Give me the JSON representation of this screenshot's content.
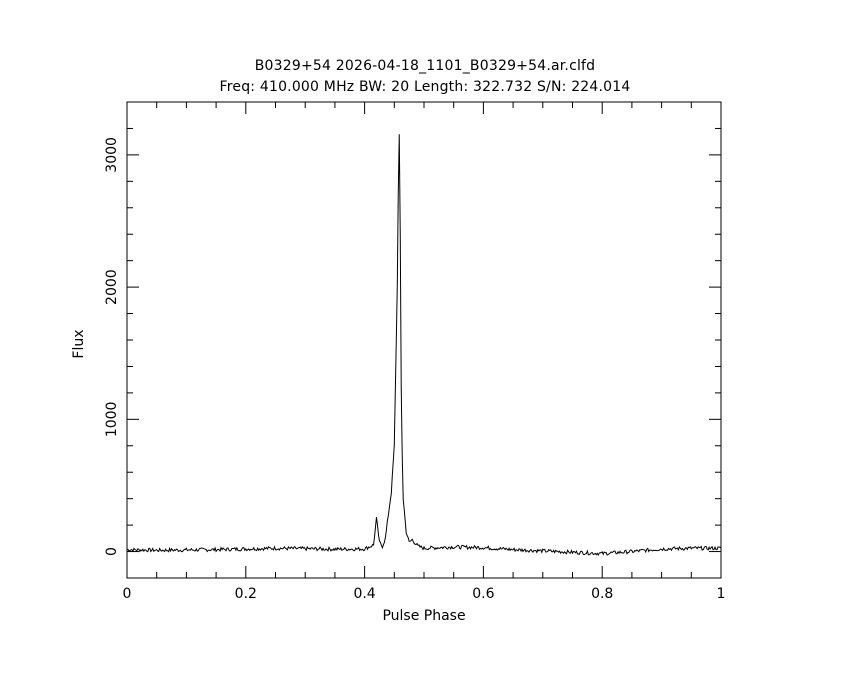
{
  "chart_data": {
    "type": "line",
    "title": "B0329+54 2026-04-18_1101_B0329+54.ar.clfd",
    "subtitle": "Freq: 410.000 MHz BW: 20 Length: 322.732 S/N: 224.014",
    "xlabel": "Pulse Phase",
    "ylabel": "Flux",
    "xlim": [
      0,
      1
    ],
    "ylim": [
      -200,
      3400
    ],
    "xticks": [
      0,
      0.2,
      0.4,
      0.6,
      0.8,
      1
    ],
    "xtick_labels": [
      "0",
      "0.2",
      "0.4",
      "0.6",
      "0.8",
      "1"
    ],
    "yticks": [
      0,
      1000,
      2000,
      3000
    ],
    "ytick_labels": [
      "0",
      "1000",
      "2000",
      "3000"
    ],
    "grid": false,
    "series": [
      {
        "x": [
          0,
          0.05,
          0.1,
          0.15,
          0.2,
          0.25,
          0.3,
          0.35,
          0.4,
          0.415,
          0.42,
          0.425,
          0.43,
          0.435,
          0.44,
          0.445,
          0.45,
          0.455,
          0.458,
          0.46,
          0.462,
          0.465,
          0.47,
          0.475,
          0.48,
          0.49,
          0.5,
          0.55,
          0.6,
          0.65,
          0.7,
          0.75,
          0.8,
          0.85,
          0.9,
          0.95,
          1
        ],
        "y": [
          15,
          10,
          12,
          15,
          20,
          25,
          22,
          18,
          20,
          50,
          250,
          70,
          40,
          100,
          280,
          450,
          800,
          2000,
          3300,
          2400,
          1000,
          400,
          150,
          70,
          90,
          40,
          25,
          35,
          30,
          15,
          5,
          -5,
          -15,
          0,
          20,
          25,
          25
        ]
      }
    ]
  }
}
